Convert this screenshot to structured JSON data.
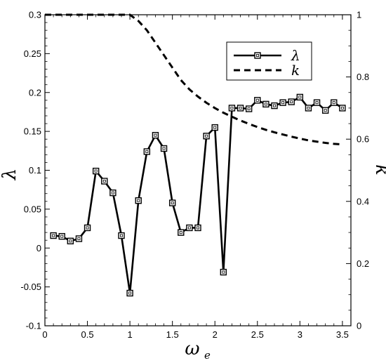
{
  "chart_data": {
    "type": "line",
    "xlabel": "ω",
    "xlabel_sub": "e",
    "ylabel_left": "λ",
    "ylabel_right": "k",
    "xlim": [
      0,
      3.6
    ],
    "ylim_left": [
      -0.1,
      0.3
    ],
    "ylim_right": [
      0,
      1
    ],
    "x_ticks": [
      0,
      0.5,
      1,
      1.5,
      2,
      2.5,
      3,
      3.5
    ],
    "y_left_ticks": [
      -0.1,
      -0.05,
      0,
      0.05,
      0.1,
      0.15,
      0.2,
      0.25,
      0.3
    ],
    "y_right_ticks": [
      0,
      0.2,
      0.4,
      0.6,
      0.8,
      1
    ],
    "legend_position": "top-right",
    "grid": false,
    "series": [
      {
        "name": "λ",
        "axis": "left",
        "style": "solid-square-markers",
        "x": [
          0.1,
          0.2,
          0.3,
          0.4,
          0.5,
          0.6,
          0.7,
          0.8,
          0.9,
          1.0,
          1.1,
          1.2,
          1.3,
          1.4,
          1.5,
          1.6,
          1.7,
          1.8,
          1.9,
          2.0,
          2.1,
          2.2,
          2.3,
          2.4,
          2.5,
          2.6,
          2.7,
          2.8,
          2.9,
          3.0,
          3.1,
          3.2,
          3.3,
          3.4,
          3.5
        ],
        "y": [
          0.016,
          0.015,
          0.009,
          0.012,
          0.026,
          0.099,
          0.086,
          0.071,
          0.016,
          -0.058,
          0.061,
          0.124,
          0.145,
          0.128,
          0.058,
          0.02,
          0.026,
          0.026,
          0.144,
          0.155,
          -0.031,
          0.18,
          0.18,
          0.179,
          0.19,
          0.185,
          0.183,
          0.187,
          0.188,
          0.194,
          0.18,
          0.187,
          0.177,
          0.187,
          0.18
        ]
      },
      {
        "name": "k",
        "axis": "right",
        "style": "dashed",
        "x": [
          0.0,
          0.5,
          1.0,
          1.1,
          1.2,
          1.3,
          1.4,
          1.5,
          1.6,
          1.7,
          1.8,
          1.9,
          2.0,
          2.1,
          2.2,
          2.3,
          2.4,
          2.5,
          2.6,
          2.7,
          2.8,
          2.9,
          3.0,
          3.1,
          3.2,
          3.3,
          3.4,
          3.5
        ],
        "y": [
          1.0,
          1.0,
          1.0,
          0.98,
          0.95,
          0.91,
          0.87,
          0.83,
          0.79,
          0.76,
          0.737,
          0.717,
          0.7,
          0.685,
          0.672,
          0.66,
          0.649,
          0.639,
          0.63,
          0.622,
          0.615,
          0.608,
          0.602,
          0.596,
          0.592,
          0.588,
          0.585,
          0.583
        ]
      }
    ]
  }
}
